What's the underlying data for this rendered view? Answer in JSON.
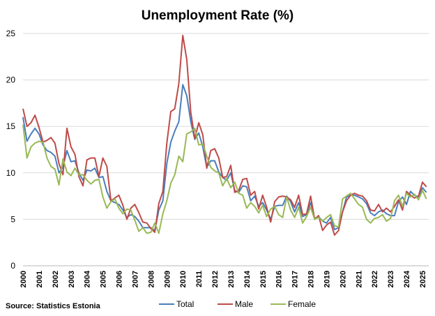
{
  "chart_data": {
    "type": "line",
    "title": "Unemployment Rate (%)",
    "source": "Source: Statistics Estonia",
    "xlabel": "",
    "ylabel": "",
    "ylim": [
      0,
      25
    ],
    "yticks": [
      0,
      5,
      10,
      15,
      20,
      25
    ],
    "xticks": [
      "2000",
      "2001",
      "2002",
      "2003",
      "2004",
      "2005",
      "2006",
      "2007",
      "2008",
      "2009",
      "2010",
      "2011",
      "2012",
      "2013",
      "2014",
      "2015",
      "2016",
      "2017",
      "2018",
      "2019",
      "2020",
      "2021",
      "2022",
      "2023",
      "2024",
      "2025"
    ],
    "frequency": "quarterly",
    "start": "2000 Q1",
    "grid": true,
    "legend": "bottom",
    "series": [
      {
        "name": "Total",
        "color": "#4a7ebb",
        "values": [
          16.0,
          13.4,
          14.2,
          14.8,
          14.2,
          13.0,
          12.4,
          12.2,
          11.8,
          10.0,
          10.6,
          12.4,
          11.2,
          11.3,
          10.0,
          9.2,
          10.3,
          10.2,
          10.5,
          9.5,
          9.6,
          8.0,
          7.0,
          6.8,
          6.6,
          6.0,
          5.2,
          5.5,
          5.3,
          4.8,
          4.1,
          4.1,
          4.1,
          3.8,
          6.0,
          7.0,
          11.0,
          13.3,
          14.5,
          15.5,
          19.5,
          18.3,
          15.5,
          13.6,
          14.3,
          12.8,
          10.6,
          11.3,
          11.3,
          10.1,
          9.5,
          9.2,
          10.0,
          8.1,
          7.9,
          8.6,
          8.5,
          7.0,
          7.5,
          6.4,
          6.8,
          6.0,
          5.0,
          6.4,
          6.5,
          6.5,
          7.5,
          6.9,
          5.8,
          6.8,
          5.3,
          5.5,
          6.8,
          5.1,
          5.3,
          4.8,
          4.6,
          5.2,
          3.9,
          4.1,
          5.8,
          7.4,
          7.6,
          7.6,
          7.4,
          7.2,
          6.7,
          5.7,
          5.4,
          5.8,
          6.0,
          5.6,
          5.4,
          5.4,
          6.9,
          7.4,
          6.6,
          8.0,
          7.6,
          7.4,
          8.4,
          7.9
        ]
      },
      {
        "name": "Male",
        "color": "#be4b48",
        "values": [
          16.9,
          15.0,
          15.4,
          16.2,
          14.9,
          13.3,
          13.5,
          13.8,
          13.2,
          11.0,
          9.8,
          14.8,
          12.8,
          12.0,
          9.6,
          8.6,
          11.4,
          11.6,
          11.6,
          9.6,
          11.6,
          10.7,
          7.0,
          7.3,
          7.6,
          6.5,
          5.0,
          6.2,
          6.6,
          5.7,
          4.7,
          4.6,
          4.0,
          3.6,
          6.7,
          8.0,
          13.2,
          16.6,
          16.9,
          19.6,
          24.8,
          22.2,
          16.5,
          13.7,
          15.4,
          14.1,
          10.5,
          12.4,
          12.6,
          11.6,
          9.5,
          9.6,
          10.8,
          7.9,
          8.1,
          9.3,
          9.4,
          7.6,
          8.0,
          6.1,
          7.6,
          6.3,
          4.7,
          6.9,
          7.4,
          7.5,
          7.4,
          7.1,
          6.3,
          7.6,
          5.5,
          5.6,
          7.5,
          5.0,
          5.4,
          3.8,
          4.4,
          4.7,
          3.3,
          3.8,
          5.8,
          7.0,
          7.6,
          7.8,
          7.6,
          7.5,
          7.0,
          6.0,
          5.9,
          6.6,
          5.8,
          6.2,
          5.8,
          6.4,
          7.1,
          6.0,
          8.0,
          7.6,
          7.3,
          7.5,
          9.0,
          8.5
        ]
      },
      {
        "name": "Female",
        "color": "#98b954",
        "values": [
          15.2,
          11.6,
          12.8,
          13.2,
          13.4,
          13.3,
          11.6,
          10.7,
          10.4,
          8.7,
          11.5,
          10.1,
          9.7,
          10.5,
          9.8,
          9.8,
          9.2,
          8.8,
          9.2,
          9.3,
          7.4,
          6.2,
          6.9,
          7.2,
          6.2,
          5.6,
          6.1,
          6.0,
          4.9,
          3.7,
          4.1,
          3.5,
          3.6,
          4.6,
          3.5,
          5.6,
          7.0,
          8.9,
          9.8,
          11.8,
          11.2,
          14.2,
          14.4,
          14.8,
          13.0,
          13.1,
          11.8,
          10.6,
          10.2,
          10.0,
          8.6,
          9.4,
          8.4,
          9.0,
          7.8,
          7.6,
          6.2,
          6.8,
          6.4,
          5.7,
          6.5,
          5.3,
          6.1,
          6.4,
          5.5,
          5.2,
          7.4,
          6.0,
          5.2,
          6.3,
          4.6,
          5.3,
          6.3,
          5.0,
          5.2,
          4.8,
          5.2,
          5.5,
          4.3,
          4.2,
          7.2,
          7.5,
          7.8,
          7.2,
          6.6,
          6.3,
          5.0,
          4.6,
          5.1,
          5.2,
          5.5,
          4.8,
          5.1,
          7.0,
          7.6,
          6.4,
          7.8,
          7.4,
          7.7,
          7.1,
          8.1,
          7.2
        ]
      }
    ]
  }
}
